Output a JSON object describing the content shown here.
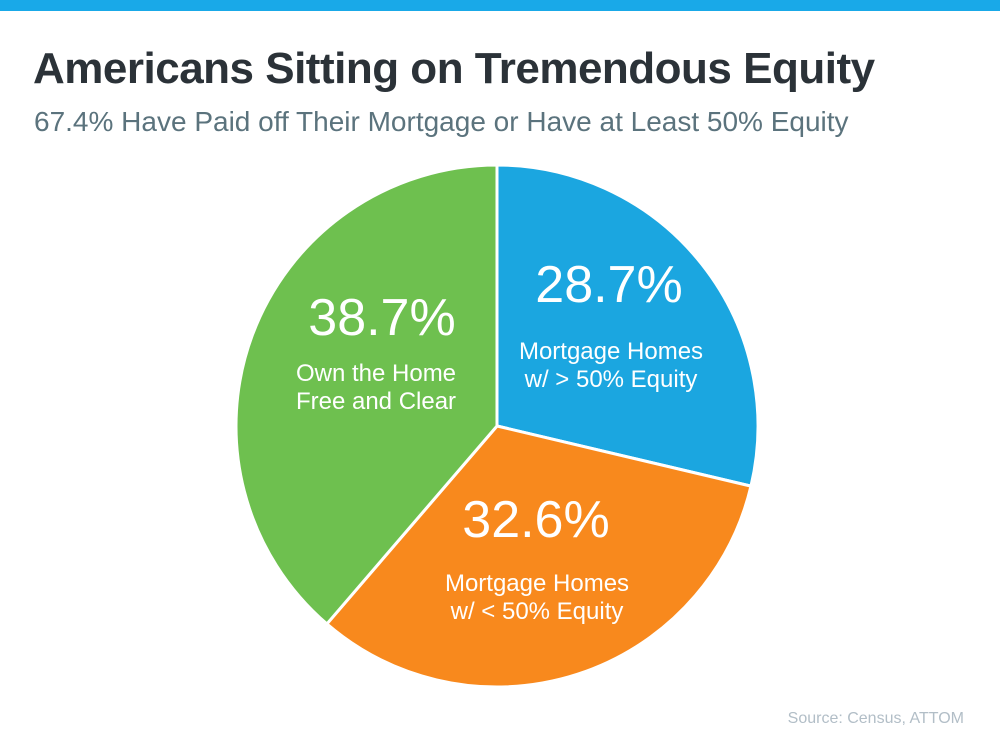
{
  "page": {
    "title": "Americans Sitting on Tremendous Equity",
    "subtitle": "67.4% Have Paid off Their Mortgage or Have at Least 50% Equity",
    "source": "Source: Census, ATTOM"
  },
  "colors": {
    "top_bar": "#19a9e8",
    "title_text": "#2b3238",
    "subtitle_text": "#5b737d",
    "source_text": "#b2bec7",
    "slice_text": "#ffffff",
    "slice_separator": "#ffffff",
    "blue": "#1ba6e0",
    "orange": "#f8891d",
    "green": "#6ec04f"
  },
  "chart_data": {
    "type": "pie",
    "title": "Americans Sitting on Tremendous Equity",
    "subtitle": "67.4% Have Paid off Their Mortgage or Have at Least 50% Equity",
    "source": "Source: Census, ATTOM",
    "start_angle_deg": 0,
    "direction": "clockwise",
    "total": 100.0,
    "slices": [
      {
        "name": "mortgage-homes-gt-50-equity",
        "value": 28.7,
        "display": "28.7%",
        "label": "Mortgage Homes w/ > 50% Equity",
        "label_lines": [
          "Mortgage Homes",
          "w/ > 50% Equity"
        ],
        "color": "#1ba6e0"
      },
      {
        "name": "mortgage-homes-lt-50-equity",
        "value": 32.6,
        "display": "32.6%",
        "label": "Mortgage Homes w/ < 50% Equity",
        "label_lines": [
          "Mortgage Homes",
          "w/ < 50% Equity"
        ],
        "color": "#f8891d"
      },
      {
        "name": "own-home-free-and-clear",
        "value": 38.7,
        "display": "38.7%",
        "label": "Own the Home Free and Clear",
        "label_lines": [
          "Own the Home",
          "Free and Clear"
        ],
        "color": "#6ec04f"
      }
    ]
  }
}
